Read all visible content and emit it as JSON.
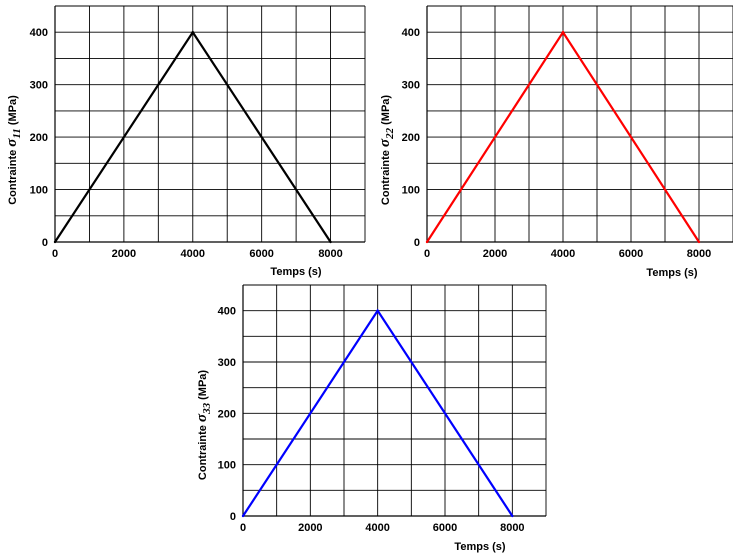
{
  "chart_data": [
    {
      "type": "line",
      "ylabel": {
        "prefix": "Contrainte ",
        "symbol": "σ",
        "subscript": "11",
        "suffix": " (MPa)"
      },
      "xlabel": "Temps (s)",
      "xlim": [
        0,
        9000
      ],
      "ylim": [
        0,
        450
      ],
      "x_ticks": [
        0,
        2000,
        4000,
        6000,
        8000
      ],
      "y_ticks": [
        0,
        100,
        200,
        300,
        400
      ],
      "x_grid_step": 1000,
      "y_grid_step": 50,
      "grid": true,
      "series": [
        {
          "x": [
            0,
            4000,
            8000
          ],
          "y": [
            0,
            400,
            0
          ],
          "color": "#000000"
        }
      ]
    },
    {
      "type": "line",
      "ylabel": {
        "prefix": "Contrainte ",
        "symbol": "σ",
        "subscript": "22",
        "suffix": " (MPa)"
      },
      "xlabel": "Temps (s)",
      "xlim": [
        0,
        9000
      ],
      "ylim": [
        0,
        450
      ],
      "x_ticks": [
        0,
        2000,
        4000,
        6000,
        8000
      ],
      "y_ticks": [
        0,
        100,
        200,
        300,
        400
      ],
      "x_grid_step": 1000,
      "y_grid_step": 50,
      "grid": true,
      "series": [
        {
          "x": [
            0,
            4000,
            8000
          ],
          "y": [
            0,
            400,
            0
          ],
          "color": "#ff0000"
        }
      ]
    },
    {
      "type": "line",
      "ylabel": {
        "prefix": "Contrainte ",
        "symbol": "σ",
        "subscript": "33",
        "suffix": " (MPa)"
      },
      "xlabel": "Temps (s)",
      "xlim": [
        0,
        9000
      ],
      "ylim": [
        0,
        450
      ],
      "x_ticks": [
        0,
        2000,
        4000,
        6000,
        8000
      ],
      "y_ticks": [
        0,
        100,
        200,
        300,
        400
      ],
      "x_grid_step": 1000,
      "y_grid_step": 50,
      "grid": true,
      "series": [
        {
          "x": [
            0,
            4000,
            8000
          ],
          "y": [
            0,
            400,
            0
          ],
          "color": "#0000ff"
        }
      ]
    }
  ]
}
